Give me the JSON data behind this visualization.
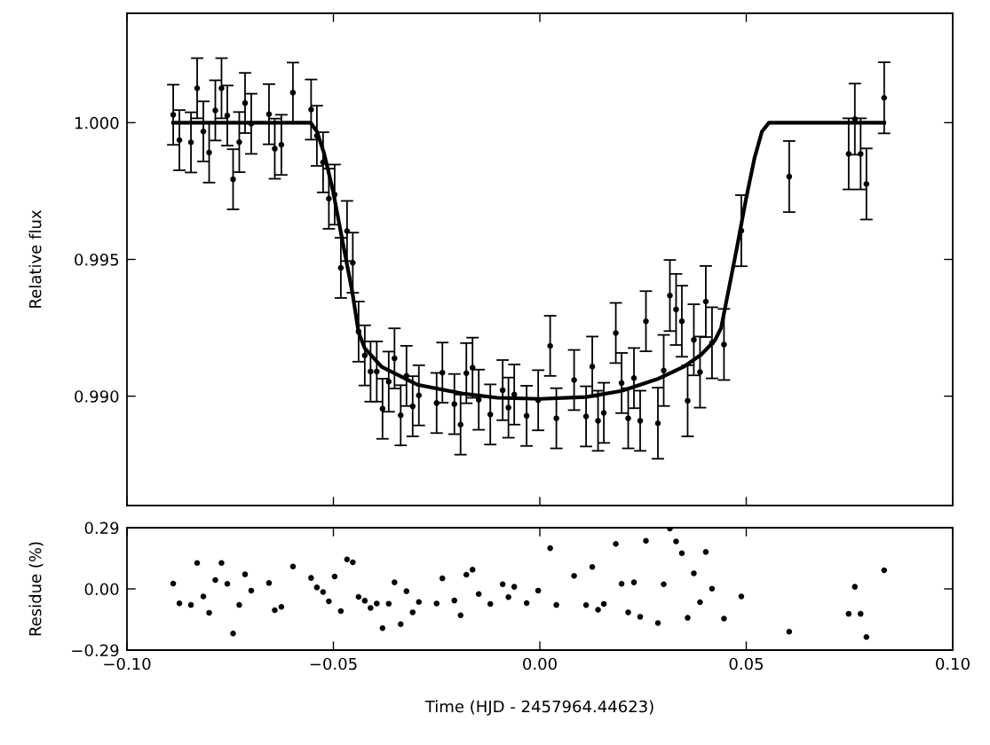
{
  "chart_data": [
    {
      "type": "scatter",
      "ylabel": "Relative flux",
      "xlim": [
        -0.1,
        0.1
      ],
      "ylim": [
        0.986,
        1.004
      ],
      "xticks": [
        {
          "value": -0.1,
          "label": null
        },
        {
          "value": -0.05,
          "label": null
        },
        {
          "value": 0.0,
          "label": null
        },
        {
          "value": 0.05,
          "label": null
        },
        {
          "value": 0.1,
          "label": null
        }
      ],
      "yticks": [
        {
          "value": 0.99,
          "label": "0.990"
        },
        {
          "value": 0.995,
          "label": "0.995"
        },
        {
          "value": 1.0,
          "label": "1.000"
        }
      ],
      "tick_labels": "y",
      "grid": false,
      "legend": false,
      "series": [
        {
          "type": "scatter",
          "color": "#000000",
          "marker": "circle",
          "x": [
            -0.0888,
            -0.0873,
            -0.0845,
            -0.083,
            -0.0815,
            -0.0801,
            -0.0786,
            -0.0771,
            -0.0757,
            -0.0743,
            -0.0728,
            -0.0714,
            -0.0699,
            -0.0656,
            -0.0642,
            -0.0626,
            -0.0598,
            -0.0554,
            -0.054,
            -0.0525,
            -0.0511,
            -0.0497,
            -0.0482,
            -0.0467,
            -0.0453,
            -0.0439,
            -0.0424,
            -0.041,
            -0.0395,
            -0.0381,
            -0.0366,
            -0.0352,
            -0.0337,
            -0.0323,
            -0.0308,
            -0.0293,
            -0.025,
            -0.0236,
            -0.0207,
            -0.0192,
            -0.0178,
            -0.0163,
            -0.0148,
            -0.012,
            -0.009,
            -0.0076,
            -0.0062,
            -0.0032,
            -0.0004,
            0.0025,
            0.004,
            0.0083,
            0.0112,
            0.0127,
            0.0141,
            0.0155,
            0.0184,
            0.0198,
            0.0214,
            0.0228,
            0.0243,
            0.0257,
            0.0286,
            0.03,
            0.0315,
            0.033,
            0.0344,
            0.0358,
            0.0373,
            0.0388,
            0.0402,
            0.0417,
            0.0446,
            0.0488,
            0.0604,
            0.0748,
            0.0763,
            0.0777,
            0.0791,
            0.0834
          ],
          "values": [
            1.00029,
            0.99936,
            0.99928,
            1.00126,
            0.99968,
            0.99891,
            1.00045,
            1.00126,
            1.00026,
            0.99793,
            0.99929,
            1.00072,
            0.99996,
            1.00031,
            0.99905,
            0.99919,
            1.0011,
            1.00048,
            0.99952,
            0.99855,
            0.99722,
            0.99737,
            0.99469,
            0.99604,
            0.99488,
            0.99236,
            0.99149,
            0.9909,
            0.9909,
            0.98954,
            0.99053,
            0.99138,
            0.9893,
            0.99074,
            0.98963,
            0.99003,
            0.98975,
            0.99086,
            0.98971,
            0.98896,
            0.99084,
            0.99104,
            0.98987,
            0.98933,
            0.99022,
            0.98958,
            0.99006,
            0.98928,
            0.98985,
            0.99184,
            0.98919,
            0.99059,
            0.98926,
            0.99108,
            0.9891,
            0.98939,
            0.99231,
            0.99048,
            0.98919,
            0.99066,
            0.9891,
            0.99274,
            0.98901,
            0.99094,
            0.99368,
            0.99317,
            0.99274,
            0.98983,
            0.99206,
            0.99088,
            0.99346,
            0.99195,
            0.99189,
            0.99605,
            0.99803,
            0.99886,
            1.00013,
            0.99886,
            0.99776,
            1.00091
          ],
          "errors": [
            0.0011,
            0.0011,
            0.0011,
            0.0011,
            0.0011,
            0.0011,
            0.0011,
            0.0011,
            0.0011,
            0.0011,
            0.0011,
            0.0011,
            0.0011,
            0.0011,
            0.0011,
            0.0011,
            0.0011,
            0.0011,
            0.0011,
            0.0011,
            0.0011,
            0.0011,
            0.0011,
            0.0011,
            0.0011,
            0.0011,
            0.0011,
            0.0011,
            0.0011,
            0.0011,
            0.0011,
            0.0011,
            0.0011,
            0.0011,
            0.0011,
            0.0011,
            0.0011,
            0.0011,
            0.0011,
            0.0011,
            0.0011,
            0.0011,
            0.0011,
            0.0011,
            0.0011,
            0.0011,
            0.0011,
            0.0011,
            0.0011,
            0.0011,
            0.0011,
            0.0011,
            0.0011,
            0.0011,
            0.0011,
            0.0011,
            0.0011,
            0.0011,
            0.0011,
            0.0011,
            0.0011,
            0.0011,
            0.0013,
            0.0013,
            0.0013,
            0.0013,
            0.0013,
            0.0013,
            0.0013,
            0.0013,
            0.0013,
            0.0013,
            0.0013,
            0.0013,
            0.0013,
            0.0013,
            0.0013,
            0.0013,
            0.0013,
            0.0013
          ]
        },
        {
          "type": "line",
          "color": "#000000",
          "line_style": "solid",
          "x": [
            -0.0888,
            -0.0555,
            -0.054,
            -0.0523,
            -0.0501,
            -0.0482,
            -0.0454,
            -0.0439,
            -0.0424,
            -0.0383,
            -0.0297,
            -0.0189,
            -0.0103,
            0.0,
            0.0112,
            0.0198,
            0.0284,
            0.0348,
            0.0391,
            0.0424,
            0.0439,
            0.0456,
            0.0477,
            0.0499,
            0.052,
            0.0538,
            0.0555,
            0.0834
          ],
          "values": [
            1.0,
            1.0,
            0.99968,
            0.9989,
            0.99751,
            0.99599,
            0.99379,
            0.99233,
            0.99175,
            0.99107,
            0.99042,
            0.9901,
            0.98994,
            0.9899,
            0.98997,
            0.99019,
            0.99062,
            0.99107,
            0.99152,
            0.99204,
            0.99249,
            0.99379,
            0.9954,
            0.99718,
            0.99871,
            0.99968,
            1.0,
            1.0
          ]
        }
      ]
    },
    {
      "type": "scatter",
      "xlabel": "Time (HJD - 2457964.44623)",
      "ylabel": "Residue (%)",
      "xlim": [
        -0.1,
        0.1
      ],
      "ylim": [
        -0.29,
        0.29
      ],
      "xticks": [
        {
          "value": -0.1,
          "label": "−0.10"
        },
        {
          "value": -0.05,
          "label": "−0.05"
        },
        {
          "value": 0.0,
          "label": "0.00"
        },
        {
          "value": 0.05,
          "label": "0.05"
        },
        {
          "value": 0.1,
          "label": "0.10"
        }
      ],
      "yticks": [
        {
          "value": -0.29,
          "label": "−0.29"
        },
        {
          "value": 0.0,
          "label": "0.00"
        },
        {
          "value": 0.29,
          "label": "0.29"
        }
      ],
      "grid": false,
      "legend": false,
      "series": [
        {
          "type": "scatter",
          "color": "#000000",
          "marker": "circle",
          "x": [
            -0.0888,
            -0.0873,
            -0.0845,
            -0.083,
            -0.0815,
            -0.0801,
            -0.0786,
            -0.0771,
            -0.0757,
            -0.0743,
            -0.0728,
            -0.0714,
            -0.0699,
            -0.0656,
            -0.0642,
            -0.0626,
            -0.0598,
            -0.0554,
            -0.054,
            -0.0525,
            -0.0511,
            -0.0497,
            -0.0482,
            -0.0467,
            -0.0453,
            -0.0439,
            -0.0424,
            -0.041,
            -0.0395,
            -0.0381,
            -0.0366,
            -0.0352,
            -0.0337,
            -0.0323,
            -0.0308,
            -0.0293,
            -0.025,
            -0.0236,
            -0.0207,
            -0.0192,
            -0.0178,
            -0.0163,
            -0.0148,
            -0.012,
            -0.009,
            -0.0076,
            -0.0062,
            -0.0032,
            -0.0004,
            0.0025,
            0.004,
            0.0083,
            0.0112,
            0.0127,
            0.0141,
            0.0155,
            0.0184,
            0.0198,
            0.0214,
            0.0228,
            0.0243,
            0.0257,
            0.0286,
            0.03,
            0.0315,
            0.033,
            0.0344,
            0.0358,
            0.0373,
            0.0388,
            0.0402,
            0.0417,
            0.0446,
            0.0488,
            0.0604,
            0.0748,
            0.0763,
            0.0777,
            0.0791,
            0.0834
          ],
          "values": [
            0.025,
            -0.068,
            -0.076,
            0.123,
            -0.036,
            -0.113,
            0.042,
            0.123,
            0.024,
            -0.211,
            -0.076,
            0.069,
            -0.008,
            0.028,
            -0.101,
            -0.085,
            0.106,
            0.052,
            0.007,
            -0.015,
            -0.059,
            0.059,
            -0.105,
            0.14,
            0.126,
            -0.038,
            -0.056,
            -0.09,
            -0.069,
            -0.186,
            -0.07,
            0.031,
            -0.167,
            -0.011,
            -0.111,
            -0.062,
            -0.069,
            0.05,
            -0.055,
            -0.125,
            0.067,
            0.091,
            -0.024,
            -0.071,
            0.022,
            -0.039,
            0.01,
            -0.067,
            -0.008,
            0.193,
            -0.076,
            0.062,
            -0.077,
            0.104,
            -0.099,
            -0.071,
            0.213,
            0.024,
            -0.111,
            0.031,
            -0.132,
            0.228,
            -0.162,
            0.022,
            0.286,
            0.225,
            0.169,
            -0.137,
            0.074,
            -0.063,
            0.175,
            0.001,
            -0.141,
            -0.036,
            -0.203,
            -0.118,
            0.01,
            -0.118,
            -0.228,
            0.088
          ]
        }
      ]
    }
  ]
}
